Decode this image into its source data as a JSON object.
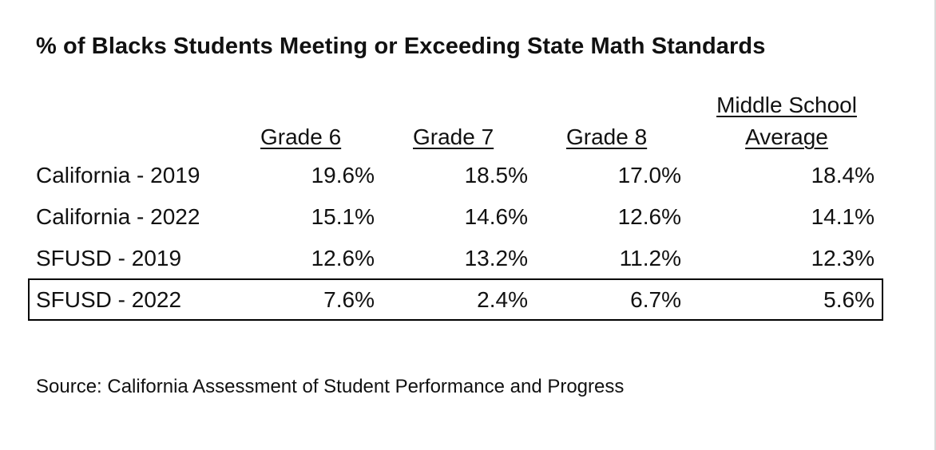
{
  "chart_data": {
    "type": "table",
    "title": "% of Blacks Students Meeting or Exceeding State Math Standards",
    "columns": [
      "Grade 6",
      "Grade 7",
      "Grade 8",
      "Middle School Average"
    ],
    "column_header_lines": [
      [
        "Grade 6"
      ],
      [
        "Grade 7"
      ],
      [
        "Grade 8"
      ],
      [
        "Middle School",
        "Average"
      ]
    ],
    "rows": [
      {
        "label": "California - 2019",
        "values": [
          "19.6%",
          "18.5%",
          "17.0%",
          "18.4%"
        ],
        "highlighted": false
      },
      {
        "label": "California - 2022",
        "values": [
          "15.1%",
          "14.6%",
          "12.6%",
          "14.1%"
        ],
        "highlighted": false
      },
      {
        "label": "SFUSD - 2019",
        "values": [
          "12.6%",
          "13.2%",
          "11.2%",
          "12.3%"
        ],
        "highlighted": false
      },
      {
        "label": "SFUSD - 2022",
        "values": [
          "7.6%",
          "2.4%",
          "6.7%",
          "5.6%"
        ],
        "highlighted": true
      }
    ],
    "source": "Source: California Assessment of Student Performance and Progress"
  }
}
